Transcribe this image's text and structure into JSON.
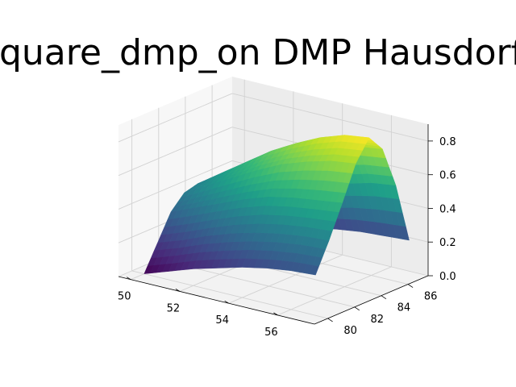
{
  "chart_data": {
    "type": "surface",
    "title": "square_dmp_on DMP Hausdorff",
    "xlabel": "",
    "ylabel": "",
    "zlabel": "",
    "colormap": "viridis",
    "grid": true,
    "xlim": [
      49.5,
      57.5
    ],
    "ylim": [
      79.0,
      87.5
    ],
    "zlim": [
      0.0,
      0.9
    ],
    "x_ticks": [
      50,
      52,
      54,
      56
    ],
    "y_ticks": [
      80,
      82,
      84,
      86
    ],
    "z_ticks": [
      0.0,
      0.2,
      0.4,
      0.6,
      0.8
    ],
    "x_tick_labels": [
      "50",
      "52",
      "54",
      "56"
    ],
    "y_tick_labels": [
      "80",
      "82",
      "84",
      "86"
    ],
    "z_tick_labels": [
      "0.0",
      "0.2",
      "0.4",
      "0.6",
      "0.8"
    ],
    "x": [
      50,
      51,
      52,
      53,
      54,
      55,
      56,
      57
    ],
    "y": [
      80,
      81,
      82,
      83,
      84,
      85,
      86,
      87
    ],
    "z": [
      [
        0.0,
        0.05,
        0.1,
        0.14,
        0.18,
        0.21,
        0.23,
        0.24
      ],
      [
        0.15,
        0.2,
        0.26,
        0.31,
        0.35,
        0.38,
        0.4,
        0.41
      ],
      [
        0.3,
        0.36,
        0.42,
        0.48,
        0.53,
        0.56,
        0.58,
        0.6
      ],
      [
        0.38,
        0.46,
        0.54,
        0.62,
        0.69,
        0.74,
        0.78,
        0.8
      ],
      [
        0.4,
        0.5,
        0.6,
        0.7,
        0.78,
        0.85,
        0.9,
        0.92
      ],
      [
        0.35,
        0.44,
        0.53,
        0.62,
        0.7,
        0.76,
        0.8,
        0.82
      ],
      [
        0.18,
        0.26,
        0.33,
        0.4,
        0.46,
        0.51,
        0.55,
        0.57
      ],
      [
        0.0,
        0.06,
        0.1,
        0.14,
        0.17,
        0.19,
        0.2,
        0.21
      ]
    ]
  }
}
